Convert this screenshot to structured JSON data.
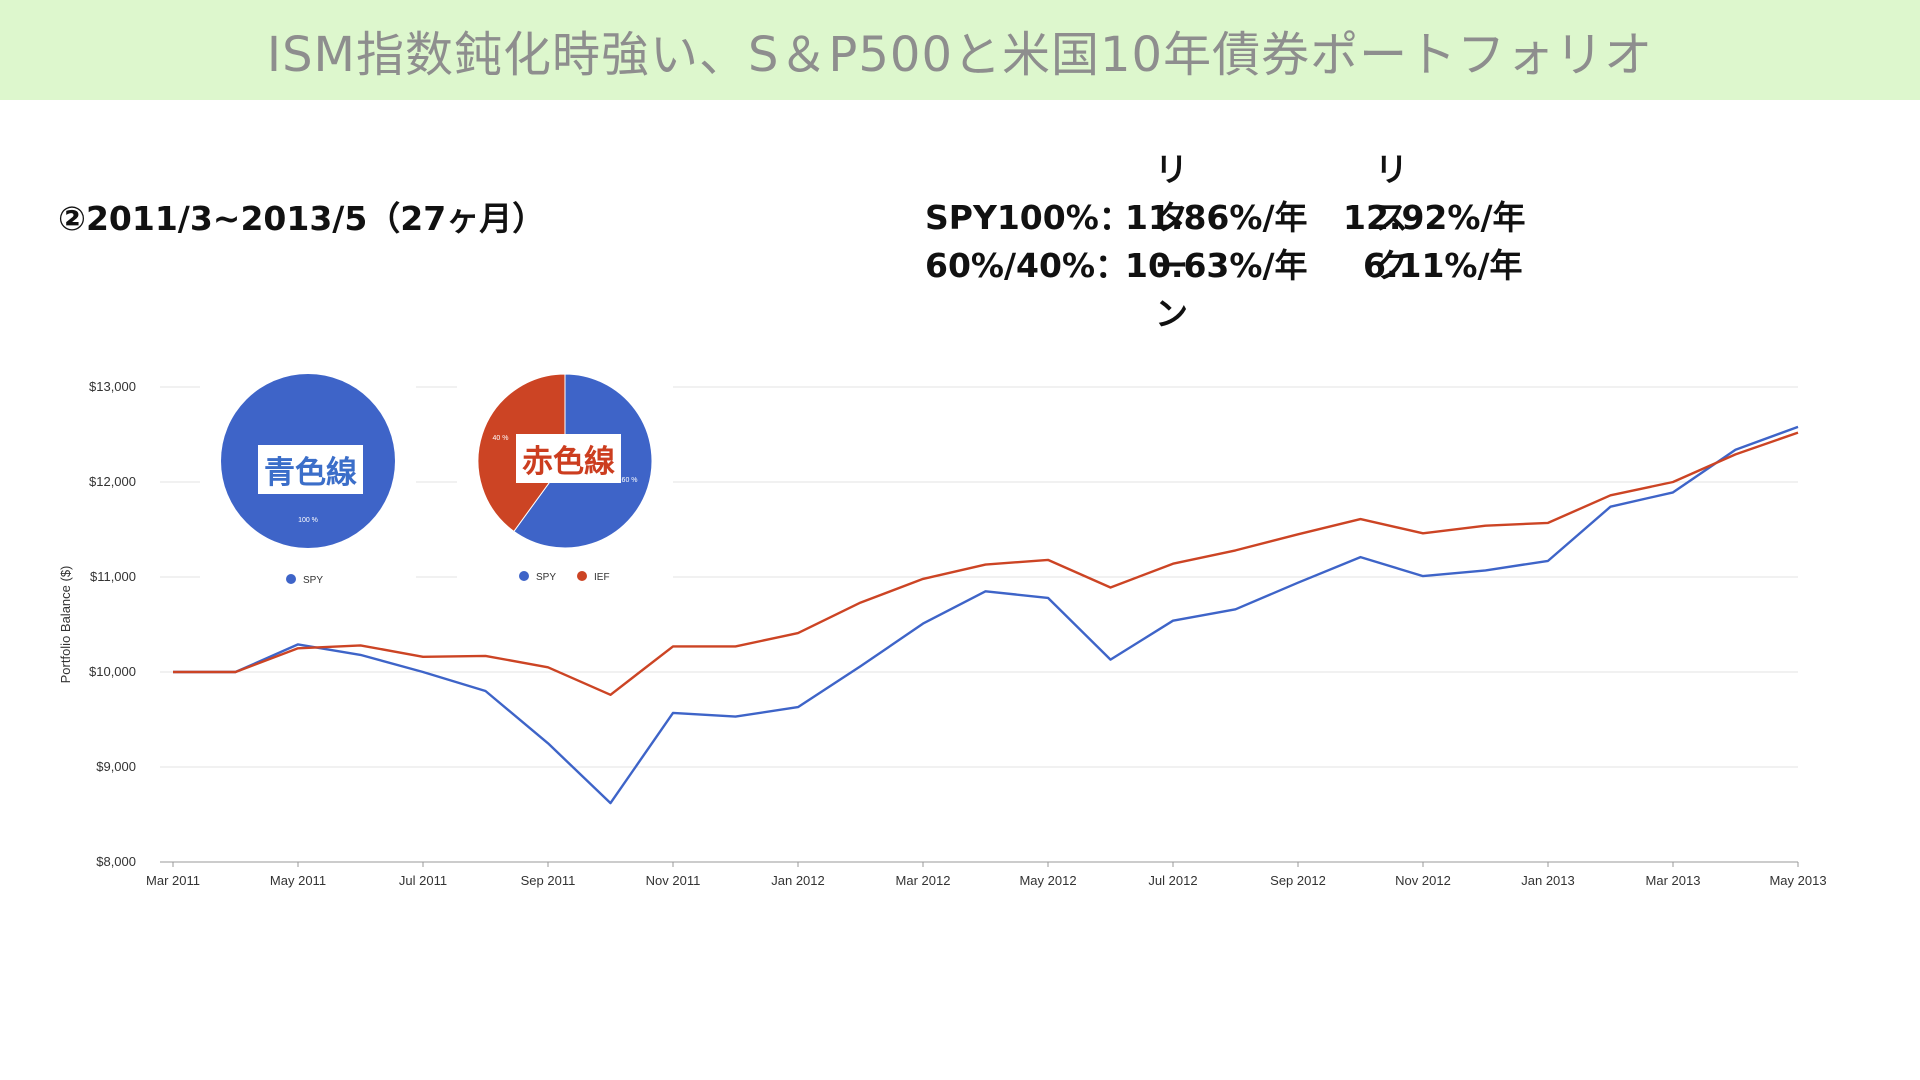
{
  "slide": {
    "title": "ISM指数鈍化時強い、S＆P500と米国10年債券ポートフォリオ",
    "period": "②2011/3~2013/5（27ヶ月）",
    "stats": {
      "header_return": "リターン",
      "header_risk": "リスク",
      "rows": [
        {
          "label": "SPY100%：",
          "return": "11.86%/年",
          "risk": "12.92%/年"
        },
        {
          "label": "60%/40%：",
          "return": "10.63%/年",
          "risk": "6.11%/年"
        }
      ]
    }
  },
  "pies": [
    {
      "label": "青色線",
      "label_color": "#3b6ec9",
      "slices": [
        {
          "name": "SPY",
          "value": 100,
          "text": "100 %",
          "color": "#3e64c8"
        }
      ],
      "legend": [
        "SPY"
      ]
    },
    {
      "label": "赤色線",
      "label_color": "#cc3d1f",
      "slices": [
        {
          "name": "SPY",
          "value": 60,
          "text": "60 %",
          "color": "#3e64c8"
        },
        {
          "name": "IEF",
          "value": 40,
          "text": "40 %",
          "color": "#cc4424"
        }
      ],
      "legend": [
        "SPY",
        "IEF"
      ]
    }
  ],
  "chart_data": {
    "type": "line",
    "ylabel": "Portfolio Balance ($)",
    "ylim": [
      8000,
      13000
    ],
    "yticks": [
      8000,
      9000,
      10000,
      11000,
      12000,
      13000
    ],
    "ytick_labels": [
      "$8,000",
      "$9,000",
      "$10,000",
      "$11,000",
      "$12,000",
      "$13,000"
    ],
    "x": [
      "Mar 2011",
      "Apr 2011",
      "May 2011",
      "Jun 2011",
      "Jul 2011",
      "Aug 2011",
      "Sep 2011",
      "Oct 2011",
      "Nov 2011",
      "Dec 2011",
      "Jan 2012",
      "Feb 2012",
      "Mar 2012",
      "Apr 2012",
      "May 2012",
      "Jun 2012",
      "Jul 2012",
      "Aug 2012",
      "Sep 2012",
      "Oct 2012",
      "Nov 2012",
      "Dec 2012",
      "Jan 2013",
      "Feb 2013",
      "Mar 2013",
      "Apr 2013",
      "May 2013"
    ],
    "xtick_labels": [
      "Mar 2011",
      "May 2011",
      "Jul 2011",
      "Sep 2011",
      "Nov 2011",
      "Jan 2012",
      "Mar 2012",
      "May 2012",
      "Jul 2012",
      "Sep 2012",
      "Nov 2012",
      "Jan 2013",
      "Mar 2013",
      "May 2013"
    ],
    "grid": true,
    "series": [
      {
        "color": "#3e64c8",
        "values": [
          10000,
          10000,
          10290,
          10180,
          10000,
          9800,
          9250,
          8620,
          9570,
          9530,
          9630,
          10060,
          10510,
          10850,
          10780,
          10130,
          10540,
          10660,
          10940,
          11210,
          11010,
          11070,
          11170,
          11740,
          11890,
          12340,
          12580
        ]
      },
      {
        "color": "#cc4424",
        "values": [
          10000,
          10000,
          10250,
          10280,
          10160,
          10170,
          10050,
          9760,
          10270,
          10270,
          10410,
          10730,
          10980,
          11130,
          11180,
          10890,
          11140,
          11280,
          11450,
          11610,
          11460,
          11540,
          11570,
          11860,
          12000,
          12290,
          12520
        ]
      }
    ]
  }
}
